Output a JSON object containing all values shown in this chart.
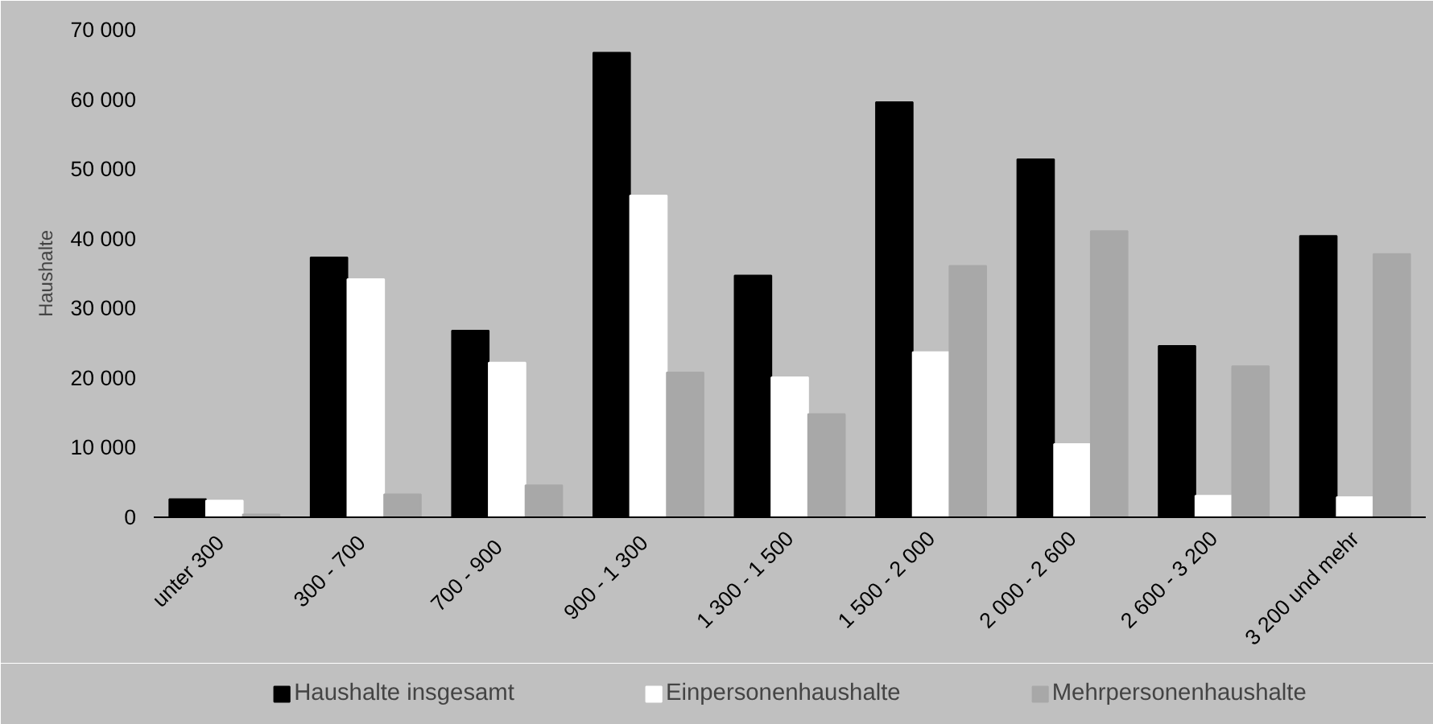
{
  "chart_data": {
    "type": "bar",
    "ylabel": "Haushalte",
    "categories": [
      "unter  300",
      "300 -  700",
      "700 -   900",
      "900 -  1 300",
      "1 300 - 1 500",
      "1 500 - 2 000",
      "2 000 - 2 600",
      "2 600 - 3 200",
      "3 200 und mehr"
    ],
    "series": [
      {
        "name": "Haushalte insgesamt",
        "color": "#000000",
        "values": [
          2600,
          37300,
          26800,
          66700,
          34700,
          59600,
          51400,
          24600,
          40400
        ]
      },
      {
        "name": "Einpersonenhaushalte",
        "color": "#ffffff",
        "values": [
          2400,
          34200,
          22200,
          46200,
          20100,
          23700,
          10500,
          3100,
          2900
        ]
      },
      {
        "name": "Mehrpersonenhaushalte",
        "color": "#a8a8a8",
        "values": [
          400,
          3300,
          4600,
          20800,
          14800,
          36100,
          41100,
          21700,
          37800
        ]
      }
    ],
    "ylim": [
      0,
      70000
    ],
    "yticks": [
      {
        "value": 0,
        "label": "0"
      },
      {
        "value": 10000,
        "label": "10 000"
      },
      {
        "value": 20000,
        "label": "20 000"
      },
      {
        "value": 30000,
        "label": "30 000"
      },
      {
        "value": 40000,
        "label": "40 000"
      },
      {
        "value": 50000,
        "label": "50 000"
      },
      {
        "value": 60000,
        "label": "60 000"
      },
      {
        "value": 70000,
        "label": "70 000"
      }
    ],
    "grid": false,
    "legend": "bottom"
  }
}
